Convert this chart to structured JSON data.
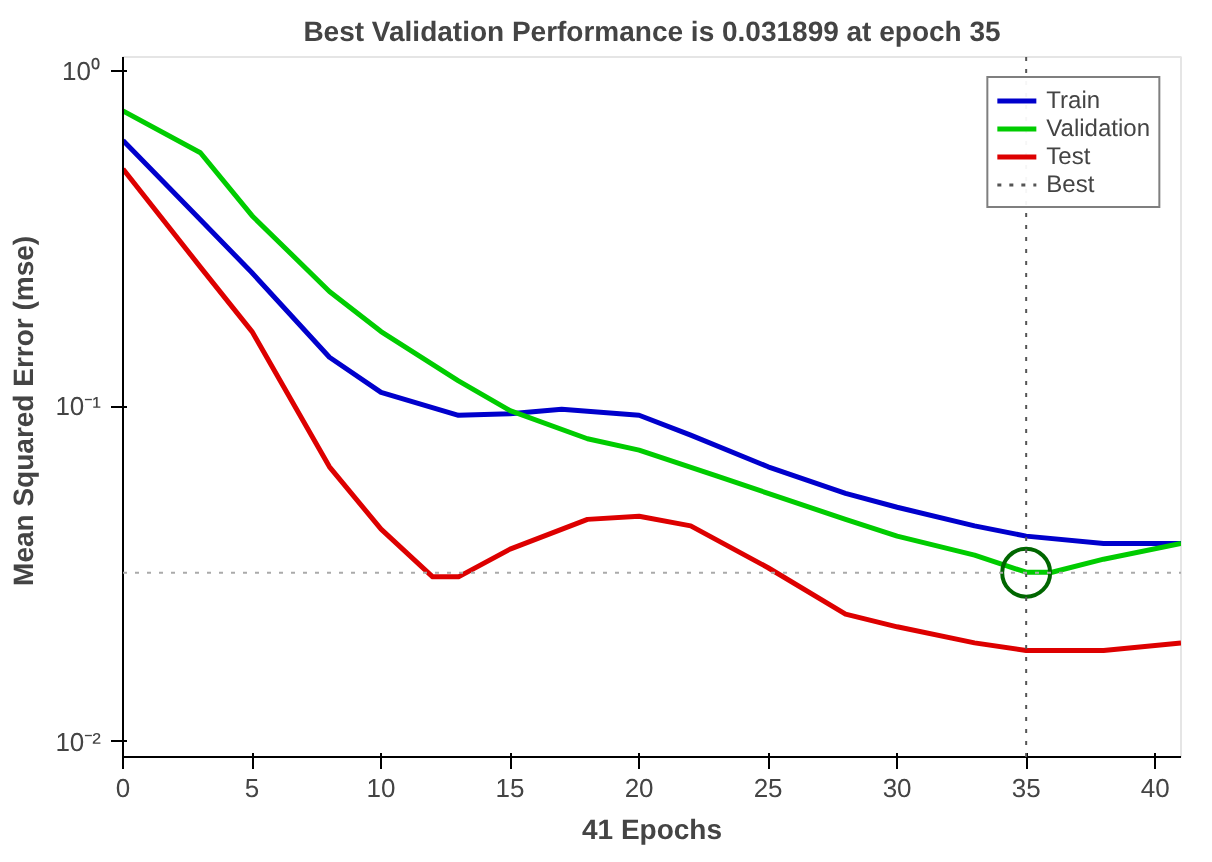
{
  "chart_data": {
    "type": "line",
    "title": "Best Validation Performance is 0.031899 at epoch 35",
    "xlabel": "41 Epochs",
    "ylabel": "Mean Squared Error  (mse)",
    "log": "y",
    "grid": false,
    "legend": "top right",
    "line_style": "solid",
    "marker": "none",
    "xlim": [
      0,
      41
    ],
    "ylim": [
      0.009,
      1.1
    ],
    "xticks": [
      0,
      5,
      10,
      15,
      20,
      25,
      30,
      35,
      40
    ],
    "yticks": [
      {
        "value": 1,
        "label": "10⁰"
      },
      {
        "value": 0.1,
        "label": "10⁻¹"
      },
      {
        "value": 0.01,
        "label": "10⁻²"
      }
    ],
    "series": [
      {
        "name": "Train",
        "color": "#0000cc",
        "x": [
          0,
          3,
          5,
          8,
          10,
          13,
          15,
          17,
          20,
          22,
          25,
          28,
          30,
          33,
          35,
          38,
          41
        ],
        "values": [
          0.62,
          0.36,
          0.25,
          0.14,
          0.11,
          0.094,
          0.095,
          0.098,
          0.094,
          0.082,
          0.066,
          0.055,
          0.05,
          0.044,
          0.041,
          0.039,
          0.039
        ]
      },
      {
        "name": "Validation",
        "color": "#00cc00",
        "x": [
          0,
          3,
          5,
          8,
          10,
          13,
          15,
          18,
          20,
          23,
          25,
          28,
          30,
          33,
          35,
          36,
          38,
          41
        ],
        "values": [
          0.76,
          0.57,
          0.37,
          0.22,
          0.167,
          0.119,
          0.097,
          0.08,
          0.074,
          0.062,
          0.055,
          0.046,
          0.041,
          0.036,
          0.032,
          0.032,
          0.035,
          0.039
        ]
      },
      {
        "name": "Test",
        "color": "#dd0000",
        "x": [
          0,
          3,
          5,
          8,
          10,
          12,
          13,
          15,
          18,
          20,
          22,
          25,
          28,
          30,
          33,
          35,
          38,
          41
        ],
        "values": [
          0.51,
          0.26,
          0.167,
          0.066,
          0.043,
          0.031,
          0.031,
          0.0375,
          0.046,
          0.047,
          0.044,
          0.033,
          0.024,
          0.022,
          0.0197,
          0.0187,
          0.0187,
          0.0197
        ]
      },
      {
        "type": "scatter",
        "color": "#006600",
        "marker": "circle",
        "x": [
          35
        ],
        "values": [
          0.031899
        ]
      }
    ],
    "ref_lines": [
      {
        "axis": "x",
        "value": 35,
        "label": "Best",
        "color": "#555555",
        "line_style": "dotted"
      },
      {
        "axis": "y",
        "value": 0.031899,
        "color": "#aaaaaa",
        "line_style": "dotted"
      }
    ]
  }
}
